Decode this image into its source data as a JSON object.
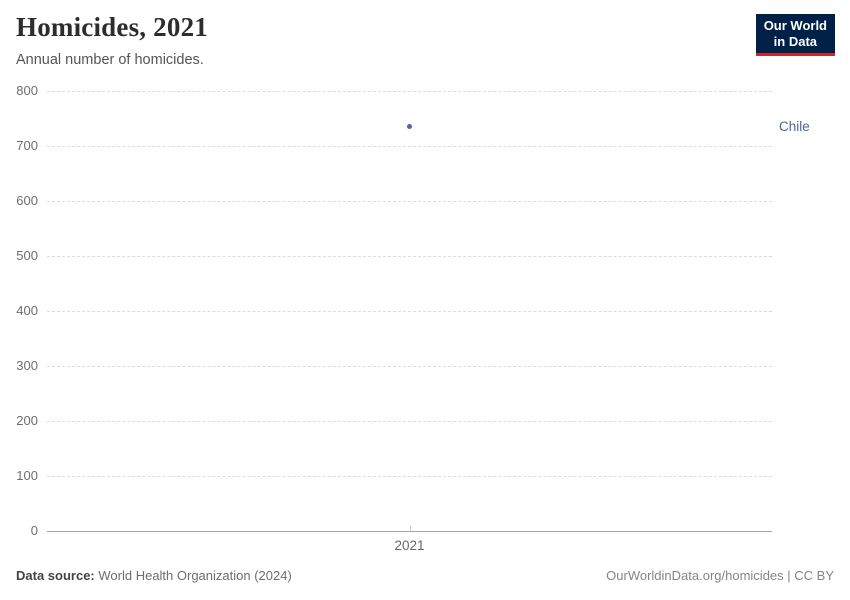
{
  "header": {
    "title": "Homicides, 2021",
    "subtitle": "Annual number of homicides."
  },
  "logo": {
    "line1": "Our World",
    "line2": "in Data",
    "bg_color": "#002147",
    "accent_color": "#C5292A"
  },
  "chart_data": {
    "type": "scatter",
    "title": "Homicides, 2021",
    "subtitle": "Annual number of homicides.",
    "x": [
      2021
    ],
    "x_tick_label": "2021",
    "series": [
      {
        "name": "Chile",
        "values": [
          735
        ],
        "color": "#4C6A9C"
      }
    ],
    "ylim": [
      0,
      800
    ],
    "yticks": [
      0,
      100,
      200,
      300,
      400,
      500,
      600,
      700,
      800
    ],
    "xlabel": "",
    "ylabel": "",
    "grid": "horizontal-dashed",
    "legend_position": "right-of-point"
  },
  "footer": {
    "source_label": "Data source:",
    "source_value": "World Health Organization (2024)",
    "right_text": "OurWorldinData.org/homicides | CC BY"
  },
  "colors": {
    "grid": "#dcdcdc",
    "axis": "#a5a5a5",
    "tick_text": "#6e6e6e",
    "point": "#4C6A9C",
    "entity_label": "#4C6A9C"
  }
}
